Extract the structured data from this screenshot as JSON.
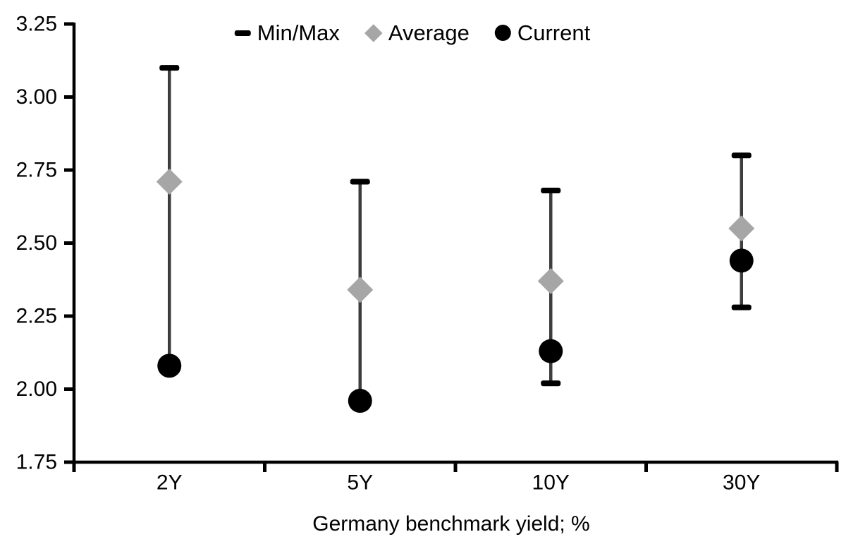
{
  "chart_data": {
    "type": "scatter",
    "variant": "min-max-range-with-markers",
    "title": "",
    "xlabel": "Germany benchmark yield; %",
    "ylabel": "",
    "categories": [
      "2Y",
      "5Y",
      "10Y",
      "30Y"
    ],
    "ylim": [
      1.75,
      3.25
    ],
    "ytick_labels": [
      "3.25",
      "3.00",
      "2.75",
      "2.50",
      "2.25",
      "2.00",
      "1.75"
    ],
    "grid": false,
    "legend_position": "top-center",
    "series": [
      {
        "name": "Min/Max",
        "marker": "dash",
        "color": "#000000",
        "max": [
          3.1,
          2.71,
          2.68,
          2.8
        ],
        "min": [
          2.08,
          1.96,
          2.02,
          2.28
        ]
      },
      {
        "name": "Average",
        "marker": "diamond",
        "color": "#a6a6a6",
        "values": [
          2.71,
          2.34,
          2.37,
          2.55
        ]
      },
      {
        "name": "Current",
        "marker": "circle",
        "color": "#000000",
        "values": [
          2.08,
          1.96,
          2.13,
          2.44
        ]
      }
    ],
    "whisker_color": "#3d3d3d",
    "axis_color": "#000000",
    "background_color": "#ffffff"
  }
}
